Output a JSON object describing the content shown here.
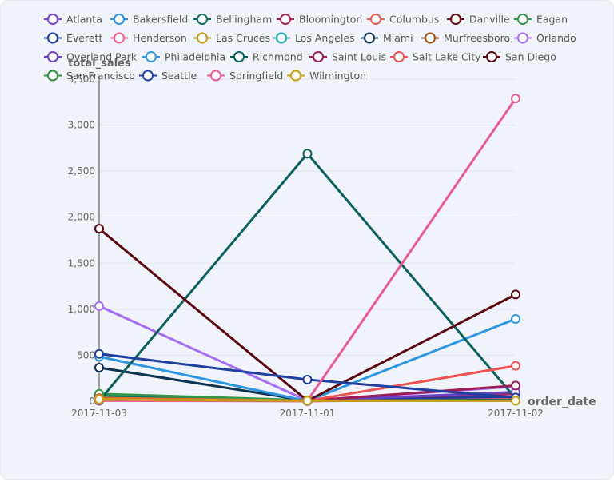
{
  "chart_data": {
    "type": "line",
    "xlabel": "order_date",
    "ylabel": "total_sales",
    "categories": [
      "2017-11-03",
      "2017-11-01",
      "2017-11-02"
    ],
    "ylim": [
      0,
      3500
    ],
    "yticks": [
      0,
      500,
      1000,
      1500,
      2000,
      2500,
      3000,
      3500
    ],
    "ytick_labels": [
      "0",
      "500",
      "1,000",
      "1,500",
      "2,000",
      "2,500",
      "3,000",
      "3,500"
    ],
    "legend_position": "top",
    "grid": true,
    "series": [
      {
        "name": "Atlanta",
        "color": "#7b3fd6",
        "values": [
          null,
          null,
          85
        ]
      },
      {
        "name": "Bakersfield",
        "color": "#2e93de",
        "values": [
          null,
          null,
          50
        ]
      },
      {
        "name": "Bellingham",
        "color": "#0f6e62",
        "values": [
          60,
          2,
          40
        ]
      },
      {
        "name": "Bloomington",
        "color": "#a1245a",
        "values": [
          20,
          3,
          80
        ]
      },
      {
        "name": "Columbus",
        "color": "#f05a5a",
        "values": [
          10,
          2,
          30
        ]
      },
      {
        "name": "Danville",
        "color": "#5e0b14",
        "values": [
          null,
          null,
          40
        ]
      },
      {
        "name": "Eagan",
        "color": "#35964a",
        "values": [
          80,
          10,
          5
        ]
      },
      {
        "name": "Everett",
        "color": "#1f3b9e",
        "values": [
          null,
          3,
          50
        ]
      },
      {
        "name": "Henderson",
        "color": "#ef5f8e",
        "values": [
          5,
          1,
          20
        ]
      },
      {
        "name": "Las Cruces",
        "color": "#c49a10",
        "values": [
          35,
          5,
          10
        ]
      },
      {
        "name": "Los Angeles",
        "color": "#1aa9a3",
        "values": [
          10,
          5,
          15
        ]
      },
      {
        "name": "Miami",
        "color": "#0e3350",
        "values": [
          365,
          5,
          15
        ]
      },
      {
        "name": "Murfreesboro",
        "color": "#9c4f10",
        "values": [
          null,
          8,
          10
        ]
      },
      {
        "name": "Orlando",
        "color": "#a66cf2",
        "values": [
          1035,
          5,
          160
        ]
      },
      {
        "name": "Overland Park",
        "color": "#6a3fc0",
        "values": [
          20,
          5,
          100
        ]
      },
      {
        "name": "Philadelphia",
        "color": "#2c97e0",
        "values": [
          485,
          2,
          895
        ]
      },
      {
        "name": "Richmond",
        "color": "#0b5f5f",
        "values": [
          5,
          2690,
          30
        ]
      },
      {
        "name": "Saint Louis",
        "color": "#9a1b56",
        "values": [
          15,
          5,
          170
        ]
      },
      {
        "name": "Salt Lake City",
        "color": "#ee5252",
        "values": [
          30,
          5,
          385
        ]
      },
      {
        "name": "San Diego",
        "color": "#5a0610",
        "values": [
          1875,
          5,
          1160
        ]
      },
      {
        "name": "San Francisco",
        "color": "#2f8f3e",
        "values": [
          15,
          5,
          10
        ]
      },
      {
        "name": "Seattle",
        "color": "#1f3fa0",
        "values": [
          515,
          235,
          40
        ]
      },
      {
        "name": "Springfield",
        "color": "#e85a96",
        "values": [
          10,
          5,
          3290
        ]
      },
      {
        "name": "Wilmington",
        "color": "#c9a012",
        "values": [
          20,
          5,
          5
        ]
      }
    ]
  }
}
